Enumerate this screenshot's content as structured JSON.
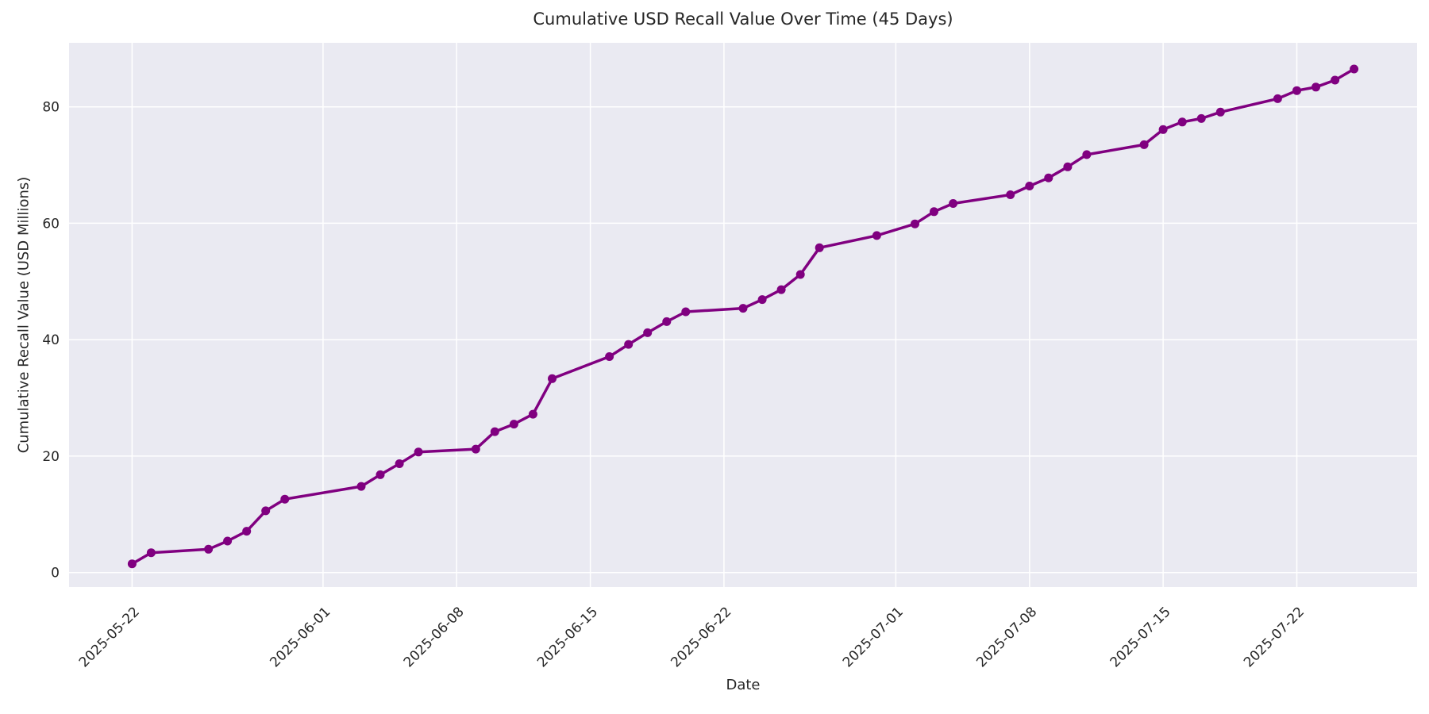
{
  "chart_data": {
    "type": "line",
    "title": "Cumulative USD Recall Value Over Time (45 Days)",
    "xlabel": "Date",
    "ylabel": "Cumulative Recall Value (USD Millions)",
    "x": [
      "2025-05-22",
      "2025-05-23",
      "2025-05-26",
      "2025-05-27",
      "2025-05-28",
      "2025-05-29",
      "2025-05-30",
      "2025-06-03",
      "2025-06-04",
      "2025-06-05",
      "2025-06-06",
      "2025-06-09",
      "2025-06-10",
      "2025-06-11",
      "2025-06-12",
      "2025-06-13",
      "2025-06-16",
      "2025-06-17",
      "2025-06-18",
      "2025-06-19",
      "2025-06-20",
      "2025-06-23",
      "2025-06-24",
      "2025-06-25",
      "2025-06-26",
      "2025-06-27",
      "2025-06-30",
      "2025-07-02",
      "2025-07-03",
      "2025-07-04",
      "2025-07-07",
      "2025-07-08",
      "2025-07-09",
      "2025-07-10",
      "2025-07-11",
      "2025-07-14",
      "2025-07-15",
      "2025-07-16",
      "2025-07-17",
      "2025-07-18",
      "2025-07-21",
      "2025-07-22",
      "2025-07-23",
      "2025-07-24",
      "2025-07-25"
    ],
    "values": [
      1.5,
      3.4,
      4.0,
      5.4,
      7.1,
      10.6,
      12.6,
      14.8,
      16.8,
      18.7,
      20.7,
      21.2,
      24.2,
      25.5,
      27.2,
      33.3,
      37.1,
      39.2,
      41.2,
      43.1,
      44.8,
      45.4,
      46.9,
      48.6,
      51.2,
      55.8,
      57.9,
      59.9,
      62.0,
      63.4,
      64.9,
      66.4,
      67.8,
      69.7,
      71.8,
      73.5,
      76.1,
      77.4,
      78.0,
      79.1,
      81.4,
      82.8,
      83.4,
      84.6,
      86.5
    ],
    "x_ticks": [
      "2025-05-22",
      "2025-06-01",
      "2025-06-08",
      "2025-06-15",
      "2025-06-22",
      "2025-07-01",
      "2025-07-08",
      "2025-07-15",
      "2025-07-22"
    ],
    "y_ticks": [
      0,
      20,
      40,
      60,
      80
    ],
    "ylim": [
      -2.5,
      91
    ],
    "grid": true,
    "legend_position": "none",
    "marker": "circle",
    "colors": {
      "line": "#800080",
      "marker": "#800080",
      "plot_background": "#EAEAF2",
      "grid": "#FFFFFF",
      "text": "#262626"
    }
  }
}
